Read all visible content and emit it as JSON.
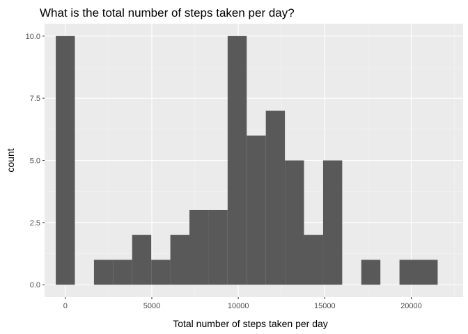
{
  "chart_data": {
    "type": "bar",
    "subtype": "histogram",
    "title": "What is the total number of steps taken per day?",
    "xlabel": "Total number of steps taken per day",
    "ylabel": "count",
    "xlim": [
      -1200,
      23000
    ],
    "ylim": [
      -0.5,
      10.5
    ],
    "x_ticks": [
      0,
      5000,
      10000,
      15000,
      20000
    ],
    "x_tick_labels": [
      "0",
      "5000",
      "10000",
      "15000",
      "20000"
    ],
    "y_ticks": [
      0,
      2.5,
      5,
      7.5,
      10
    ],
    "y_tick_labels": [
      "0.0",
      "2.5",
      "5.0",
      "7.5",
      "10.0"
    ],
    "bin_width": 1104,
    "bins": [
      {
        "center": 0,
        "count": 10
      },
      {
        "center": 1104,
        "count": 0
      },
      {
        "center": 2208,
        "count": 1
      },
      {
        "center": 3312,
        "count": 1
      },
      {
        "center": 4416,
        "count": 2
      },
      {
        "center": 5520,
        "count": 1
      },
      {
        "center": 6624,
        "count": 2
      },
      {
        "center": 7728,
        "count": 3
      },
      {
        "center": 8832,
        "count": 3
      },
      {
        "center": 9936,
        "count": 10
      },
      {
        "center": 11040,
        "count": 6
      },
      {
        "center": 12144,
        "count": 7
      },
      {
        "center": 13248,
        "count": 5
      },
      {
        "center": 14352,
        "count": 2
      },
      {
        "center": 15456,
        "count": 5
      },
      {
        "center": 16560,
        "count": 0
      },
      {
        "center": 17664,
        "count": 1
      },
      {
        "center": 18768,
        "count": 0
      },
      {
        "center": 19872,
        "count": 1
      },
      {
        "center": 20976,
        "count": 1
      }
    ],
    "grid": true,
    "colors": {
      "panel_background": "#ebebeb",
      "grid_major": "#ffffff",
      "grid_minor": "#f5f5f5",
      "bar_fill": "#595959",
      "tick_mark": "#333333"
    }
  }
}
